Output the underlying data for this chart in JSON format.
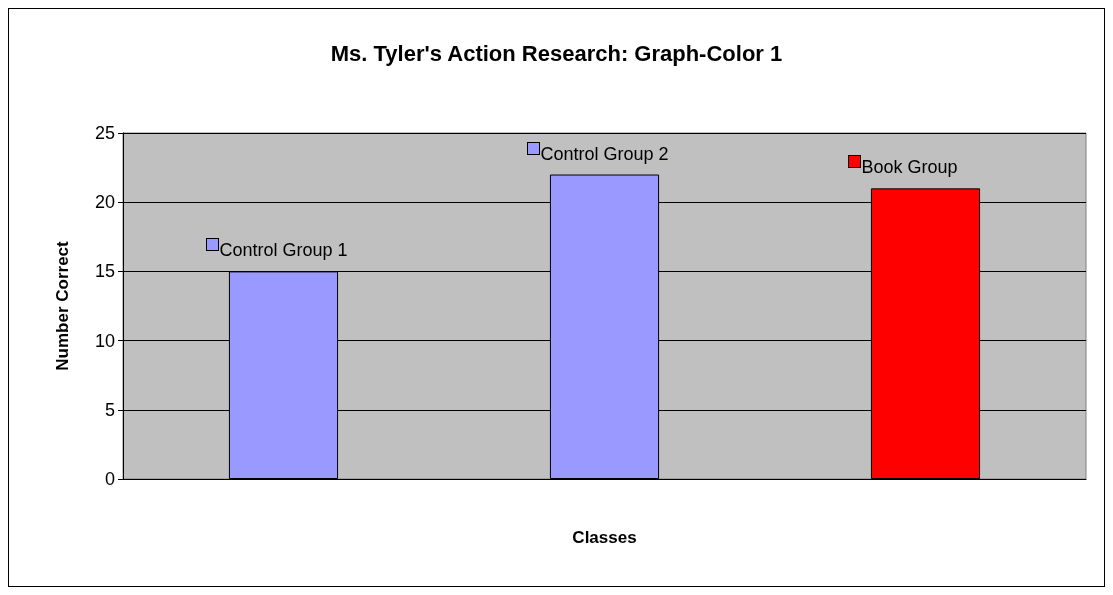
{
  "chart_data": {
    "type": "bar",
    "title": "Ms. Tyler's Action Research: Graph-Color 1",
    "xlabel": "Classes",
    "ylabel": "Number Correct",
    "categories": [
      "Control Group 1",
      "Control Group 2",
      "Book Group"
    ],
    "values": [
      15,
      22,
      21
    ],
    "colors": [
      "#9999ff",
      "#9999ff",
      "#ff0000"
    ],
    "ylim": [
      0,
      25
    ],
    "yticks": [
      0,
      5,
      10,
      15,
      20,
      25
    ],
    "grid": "y",
    "tick_labels": "y"
  }
}
